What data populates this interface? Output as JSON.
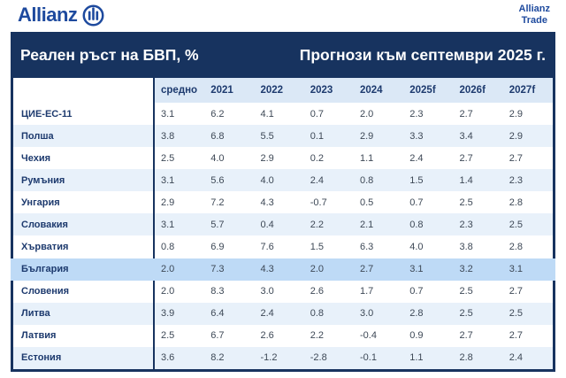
{
  "brand": {
    "wordmark": "Allianz",
    "trade": {
      "line1": "Allianz",
      "line2": "Trade"
    }
  },
  "colors": {
    "panel_navy": "#17335f",
    "logo_blue": "#1e4a9e",
    "row_alt_blue": "#e8f1fa",
    "header_row_blue": "#dbe8f6",
    "highlight_blue": "#bedaf6",
    "label_navy": "#1d3a6e",
    "value_gray": "#3d4856"
  },
  "chart_data": {
    "type": "table",
    "title": "Реален ръст на БВП, %",
    "subtitle": "Прогнози към септември 2025 г.",
    "columns": [
      "средно",
      "2021",
      "2022",
      "2023",
      "2024",
      "2025f",
      "2026f",
      "2027f"
    ],
    "rows": [
      {
        "label": "ЦИЕ-ЕС-11",
        "values": [
          3.1,
          6.2,
          4.1,
          0.7,
          2.0,
          2.3,
          2.7,
          2.9
        ],
        "highlight": false
      },
      {
        "label": "Полша",
        "values": [
          3.8,
          6.8,
          5.5,
          0.1,
          2.9,
          3.3,
          3.4,
          2.9
        ],
        "highlight": false
      },
      {
        "label": "Чехия",
        "values": [
          2.5,
          4.0,
          2.9,
          0.2,
          1.1,
          2.4,
          2.7,
          2.7
        ],
        "highlight": false
      },
      {
        "label": "Румъния",
        "values": [
          3.1,
          5.6,
          4.0,
          2.4,
          0.8,
          1.5,
          1.4,
          2.3
        ],
        "highlight": false
      },
      {
        "label": "Унгария",
        "values": [
          2.9,
          7.2,
          4.3,
          -0.7,
          0.5,
          0.7,
          2.5,
          2.8
        ],
        "highlight": false
      },
      {
        "label": "Словакия",
        "values": [
          3.1,
          5.7,
          0.4,
          2.2,
          2.1,
          0.8,
          2.3,
          2.5
        ],
        "highlight": false
      },
      {
        "label": "Хърватия",
        "values": [
          0.8,
          6.9,
          7.6,
          1.5,
          6.3,
          4.0,
          3.8,
          2.8
        ],
        "highlight": false
      },
      {
        "label": "България",
        "values": [
          2.0,
          7.3,
          4.3,
          2.0,
          2.7,
          3.1,
          3.2,
          3.1
        ],
        "highlight": true
      },
      {
        "label": "Словения",
        "values": [
          2.0,
          8.3,
          3.0,
          2.6,
          1.7,
          0.7,
          2.5,
          2.7
        ],
        "highlight": false
      },
      {
        "label": "Литва",
        "values": [
          3.9,
          6.4,
          2.4,
          0.8,
          3.0,
          2.8,
          2.5,
          2.5
        ],
        "highlight": false
      },
      {
        "label": "Латвия",
        "values": [
          2.5,
          6.7,
          2.6,
          2.2,
          -0.4,
          0.9,
          2.7,
          2.7
        ],
        "highlight": false
      },
      {
        "label": "Естония",
        "values": [
          3.6,
          8.2,
          -1.2,
          -2.8,
          -0.1,
          1.1,
          2.8,
          2.4
        ],
        "highlight": false
      }
    ],
    "highlighted_row": "България",
    "value_format": "one_decimal",
    "legend_position": "none",
    "grid": false
  }
}
